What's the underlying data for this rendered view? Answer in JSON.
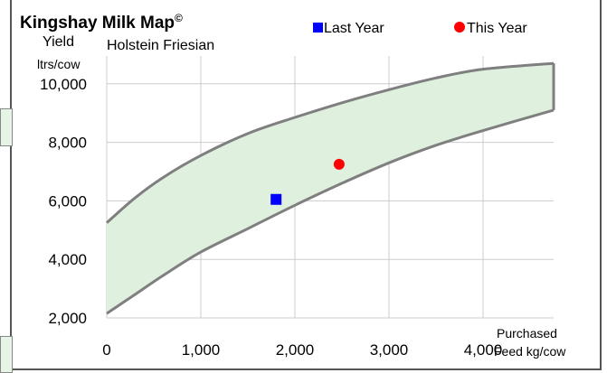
{
  "chart_data": {
    "type": "scatter",
    "title": "Kingshay Milk Map",
    "title_mark": "©",
    "subtitle": "Holstein Friesian",
    "ylabel_line1": "Yield",
    "ylabel_line2": "ltrs/cow",
    "xlabel_line1": "Purchased",
    "xlabel_line2": "Feed kg/cow",
    "xlim": [
      0,
      4750
    ],
    "ylim": [
      2000,
      10950
    ],
    "x_ticks": [
      "0",
      "1,000",
      "2,000",
      "3,000",
      "4,000"
    ],
    "x_tick_values": [
      0,
      1000,
      2000,
      3000,
      4000
    ],
    "y_ticks": [
      "2,000",
      "4,000",
      "6,000",
      "8,000",
      "10,000"
    ],
    "y_tick_values": [
      2000,
      4000,
      6000,
      8000,
      10000
    ],
    "grid": true,
    "legend_position": "top",
    "band": {
      "upper": [
        [
          0,
          5250
        ],
        [
          300,
          6100
        ],
        [
          600,
          6800
        ],
        [
          1000,
          7550
        ],
        [
          1500,
          8300
        ],
        [
          2000,
          8850
        ],
        [
          2500,
          9350
        ],
        [
          3000,
          9800
        ],
        [
          3500,
          10200
        ],
        [
          4000,
          10500
        ],
        [
          4750,
          10700
        ]
      ],
      "lower": [
        [
          0,
          2150
        ],
        [
          300,
          2800
        ],
        [
          600,
          3450
        ],
        [
          1000,
          4250
        ],
        [
          1500,
          5050
        ],
        [
          2000,
          5850
        ],
        [
          2500,
          6600
        ],
        [
          3000,
          7300
        ],
        [
          3500,
          7900
        ],
        [
          4000,
          8400
        ],
        [
          4750,
          9100
        ]
      ],
      "fill_color": "#dff0df",
      "line_color": "#7f7f7f"
    },
    "series": [
      {
        "name": "Last Year",
        "marker": "square",
        "color": "#0000ff",
        "points": [
          [
            1800,
            6050
          ]
        ]
      },
      {
        "name": "This Year",
        "marker": "circle",
        "color": "#ff0000",
        "points": [
          [
            2470,
            7250
          ]
        ]
      }
    ]
  }
}
